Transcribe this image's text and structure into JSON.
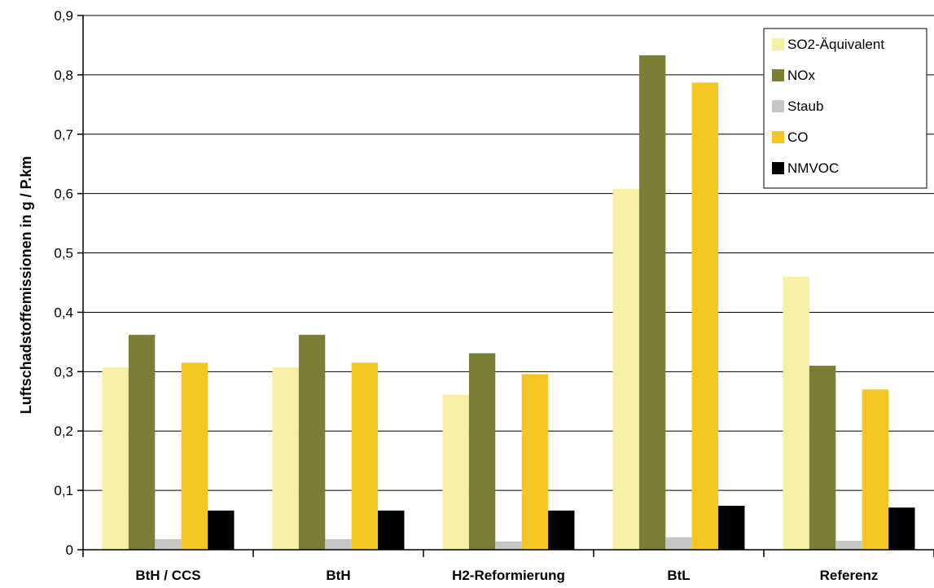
{
  "chart_data": {
    "type": "bar",
    "title": "",
    "xlabel": "",
    "ylabel": "Luftschadstoffemissionen in g / P.km",
    "categories": [
      "BtH / CCS",
      "BtH",
      "H2-Reformierung",
      "BtL",
      "Referenz"
    ],
    "y_tick_labels": [
      "0",
      "0,1",
      "0,2",
      "0,3",
      "0,4",
      "0,5",
      "0,6",
      "0,7",
      "0,8",
      "0,9"
    ],
    "ylim": [
      0,
      0.9
    ],
    "grid": true,
    "legend_position": "top-right",
    "series": [
      {
        "name": "SO2-Äquivalent",
        "color": "#f5f0a3",
        "values": [
          0.307,
          0.307,
          0.261,
          0.608,
          0.46
        ]
      },
      {
        "name": "NOx",
        "color": "#7b7f35",
        "values": [
          0.362,
          0.362,
          0.331,
          0.833,
          0.31
        ]
      },
      {
        "name": "Staub",
        "color": "#c6c6c6",
        "values": [
          0.018,
          0.018,
          0.014,
          0.021,
          0.015
        ]
      },
      {
        "name": "CO",
        "color": "#f5c623",
        "values": [
          0.315,
          0.315,
          0.296,
          0.787,
          0.27
        ]
      },
      {
        "name": "NMVOC",
        "color": "#000000",
        "values": [
          0.066,
          0.066,
          0.066,
          0.074,
          0.071
        ]
      }
    ]
  }
}
